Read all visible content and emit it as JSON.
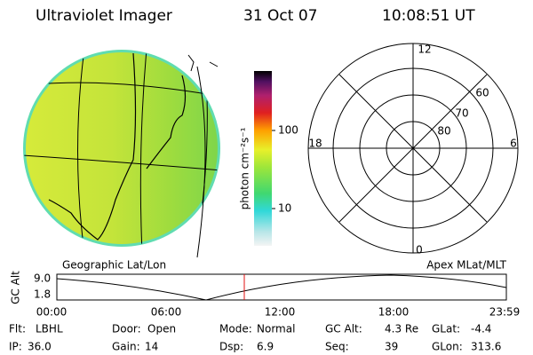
{
  "header": {
    "instrument": "Ultraviolet Imager",
    "date": "31 Oct 07",
    "time": "10:08:51 UT"
  },
  "colorbar": {
    "label": "photon cm⁻²s⁻¹",
    "ticks": [
      100,
      10
    ]
  },
  "polar": {
    "mlt_labels": [
      12,
      18,
      6,
      0
    ],
    "lat_labels": [
      60,
      70,
      80
    ]
  },
  "timeline": {
    "left_title": "Geographic Lat/Lon",
    "right_title": "Apex  MLat/MLT",
    "y_label": "GC Alt",
    "y_ticks": [
      "9.0",
      "1.8"
    ],
    "x_ticks": [
      "00:00",
      "06:00",
      "12:00",
      "18:00",
      "23:59"
    ]
  },
  "status": {
    "rows": [
      [
        {
          "label": "Flt:",
          "value": "LBHL"
        },
        {
          "label": "Door:",
          "value": "Open"
        },
        {
          "label": "Mode:",
          "value": "Normal"
        },
        {
          "label": "GC Alt:",
          "value": "4.3 Re"
        },
        {
          "label": "GLat:",
          "value": "-4.4"
        }
      ],
      [
        {
          "label": "IP:",
          "value": "36.0"
        },
        {
          "label": "Gain:",
          "value": "14"
        },
        {
          "label": "Dsp:",
          "value": "6.9"
        },
        {
          "label": "Seq:",
          "value": "39"
        },
        {
          "label": "GLon:",
          "value": "313.6"
        }
      ]
    ]
  }
}
